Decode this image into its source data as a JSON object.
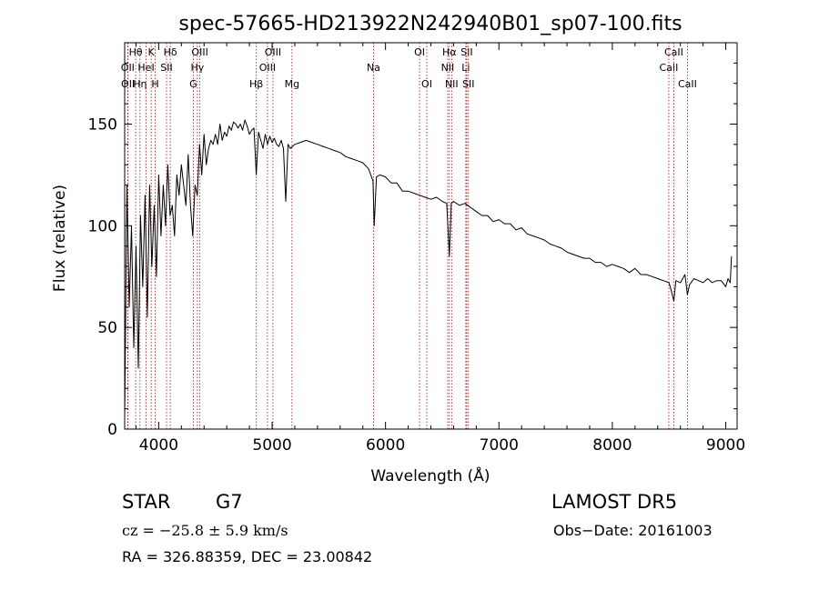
{
  "chart_data": {
    "type": "line",
    "title": "spec-57665-HD213922N242940B01_sp07-100.fits",
    "xlabel": "Wavelength (Å)",
    "ylabel": "Flux (relative)",
    "xlim": [
      3700,
      9100
    ],
    "ylim": [
      0,
      190
    ],
    "x_ticks": [
      4000,
      5000,
      6000,
      7000,
      8000,
      9000
    ],
    "y_ticks": [
      0,
      50,
      100,
      150
    ],
    "line_color": "#000000",
    "marker_color": "#a01010",
    "grid": false,
    "series": [
      {
        "x": [
          3700,
          3720,
          3740,
          3760,
          3780,
          3800,
          3820,
          3840,
          3860,
          3880,
          3900,
          3920,
          3940,
          3960,
          3980,
          4000,
          4020,
          4040,
          4060,
          4080,
          4100,
          4120,
          4140,
          4160,
          4180,
          4200,
          4220,
          4240,
          4260,
          4280,
          4300,
          4320,
          4340,
          4360,
          4380,
          4400,
          4420,
          4440,
          4460,
          4480,
          4500,
          4520,
          4540,
          4560,
          4580,
          4600,
          4620,
          4640,
          4660,
          4680,
          4700,
          4720,
          4740,
          4760,
          4780,
          4800,
          4820,
          4840,
          4860,
          4880,
          4900,
          4920,
          4940,
          4960,
          4980,
          5000,
          5020,
          5040,
          5060,
          5080,
          5100,
          5120,
          5140,
          5160,
          5180,
          5200,
          5250,
          5300,
          5350,
          5400,
          5450,
          5500,
          5550,
          5600,
          5650,
          5700,
          5750,
          5800,
          5850,
          5890,
          5900,
          5920,
          5950,
          6000,
          6050,
          6100,
          6150,
          6200,
          6250,
          6300,
          6350,
          6400,
          6450,
          6500,
          6540,
          6563,
          6580,
          6600,
          6650,
          6700,
          6750,
          6800,
          6850,
          6900,
          6950,
          7000,
          7050,
          7100,
          7150,
          7200,
          7250,
          7300,
          7350,
          7400,
          7450,
          7500,
          7550,
          7600,
          7650,
          7700,
          7750,
          7800,
          7850,
          7900,
          7950,
          8000,
          8050,
          8100,
          8150,
          8200,
          8250,
          8300,
          8350,
          8400,
          8450,
          8500,
          8520,
          8542,
          8560,
          8600,
          8640,
          8662,
          8680,
          8720,
          8760,
          8800,
          8840,
          8880,
          8920,
          8960,
          9000,
          9020,
          9040,
          9050
        ],
        "y": [
          5,
          120,
          60,
          100,
          40,
          90,
          30,
          105,
          70,
          115,
          55,
          120,
          80,
          110,
          75,
          125,
          95,
          120,
          100,
          130,
          105,
          110,
          95,
          125,
          115,
          130,
          120,
          110,
          135,
          110,
          95,
          120,
          115,
          140,
          125,
          145,
          130,
          138,
          142,
          140,
          145,
          140,
          150,
          142,
          146,
          144,
          149,
          147,
          151,
          150,
          148,
          150,
          147,
          152,
          149,
          145,
          147,
          148,
          125,
          146,
          142,
          138,
          145,
          140,
          144,
          141,
          143,
          140,
          139,
          142,
          138,
          112,
          140,
          138,
          139,
          140,
          141,
          142,
          141,
          140,
          139,
          138,
          137,
          136,
          134,
          133,
          132,
          131,
          128,
          122,
          100,
          124,
          125,
          124,
          121,
          121,
          117,
          117,
          116,
          115,
          114,
          113,
          114,
          112,
          111,
          85,
          111,
          112,
          110,
          111,
          109,
          107,
          105,
          105,
          102,
          103,
          101,
          101,
          98,
          99,
          96,
          95,
          94,
          93,
          91,
          90,
          89,
          87,
          86,
          85,
          84,
          84,
          82,
          82,
          80,
          81,
          80,
          79,
          77,
          79,
          76,
          76,
          75,
          74,
          73,
          72,
          68,
          63,
          73,
          72,
          76,
          66,
          71,
          74,
          73,
          72,
          74,
          72,
          73,
          73,
          70,
          74,
          72,
          85
        ]
      }
    ],
    "lines": [
      {
        "label": "OII",
        "wl": 3727,
        "row": 2
      },
      {
        "label": "OII",
        "wl": 3729,
        "row": 3
      },
      {
        "label": "Hθ",
        "wl": 3797,
        "row": 1
      },
      {
        "label": "Hη",
        "wl": 3835,
        "row": 3
      },
      {
        "label": "HeI",
        "wl": 3889,
        "row": 2
      },
      {
        "label": "K",
        "wl": 3934,
        "row": 1
      },
      {
        "label": "H",
        "wl": 3969,
        "row": 3
      },
      {
        "label": "SII",
        "wl": 4069,
        "row": 2
      },
      {
        "label": "Hδ",
        "wl": 4102,
        "row": 1
      },
      {
        "label": "G",
        "wl": 4305,
        "row": 3
      },
      {
        "label": "Hγ",
        "wl": 4341,
        "row": 2
      },
      {
        "label": "OIII",
        "wl": 4363,
        "row": 1
      },
      {
        "label": "Hβ",
        "wl": 4861,
        "row": 3
      },
      {
        "label": "OIII",
        "wl": 4959,
        "row": 2
      },
      {
        "label": "OIII",
        "wl": 5007,
        "row": 1
      },
      {
        "label": "Mg",
        "wl": 5175,
        "row": 3
      },
      {
        "label": "Na",
        "wl": 5894,
        "row": 2
      },
      {
        "label": "OI",
        "wl": 6300,
        "row": 1
      },
      {
        "label": "OI",
        "wl": 6364,
        "row": 3
      },
      {
        "label": "NII",
        "wl": 6548,
        "row": 2
      },
      {
        "label": "Hα",
        "wl": 6563,
        "row": 1
      },
      {
        "label": "NII",
        "wl": 6583,
        "row": 3
      },
      {
        "label": "Li",
        "wl": 6708,
        "row": 2
      },
      {
        "label": "SII",
        "wl": 6716,
        "row": 1
      },
      {
        "label": "SII",
        "wl": 6731,
        "row": 3
      },
      {
        "label": "CaII",
        "wl": 8498,
        "row": 2
      },
      {
        "label": "CaII",
        "wl": 8542,
        "row": 1
      },
      {
        "label": "CaII",
        "wl": 8662,
        "row": 3
      }
    ]
  },
  "info": {
    "object_class": "STAR",
    "subclass": "G7",
    "survey": "LAMOST DR5",
    "cz": "cz = −25.8 ± 5.9 km/s",
    "obs_date": "Obs−Date: 20161003",
    "coords": "RA = 326.88359, DEC =  23.00842"
  }
}
